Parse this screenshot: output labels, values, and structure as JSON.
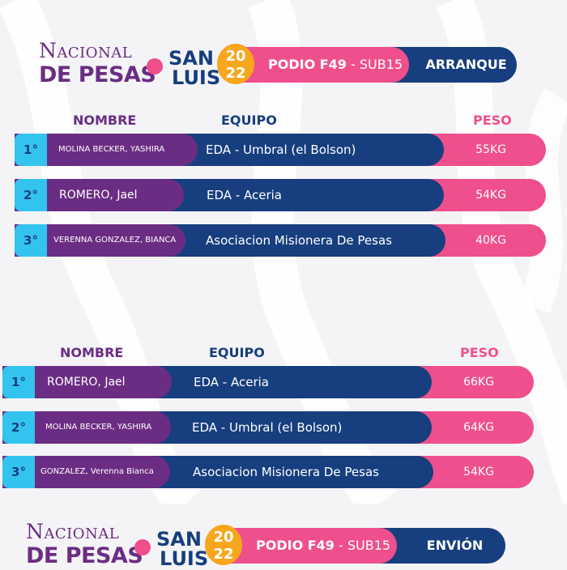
{
  "panels": [
    {
      "logo": {
        "line1_big1": "N",
        "line1_small1": "ACIONAL",
        "line2": "DE PESAS"
      },
      "city": {
        "line1": "SAN",
        "line2": "LUIS"
      },
      "year": {
        "top": "20",
        "bottom": "22"
      },
      "bar": {
        "podio": "PODIO F49",
        "sep": " - ",
        "category": "SUB15",
        "lift": "ARRANQUE"
      },
      "headers": {
        "nombre": "NOMBRE",
        "equipo": "EQUIPO",
        "peso": "PESO"
      },
      "rows": [
        {
          "rank": "1°",
          "name": "MOLINA BECKER, YASHIRA",
          "team": "EDA - Umbral (el Bolson)",
          "weight": "55KG"
        },
        {
          "rank": "2°",
          "name": "ROMERO, Jael",
          "team": "EDA - Aceria",
          "weight": "54KG"
        },
        {
          "rank": "3°",
          "name": "VERENNA GONZALEZ, BIANCA",
          "team": "Asociacion Misionera De Pesas",
          "weight": "40KG"
        }
      ]
    },
    {
      "logo": {
        "line1_big1": "N",
        "line1_small1": "ACIONAL",
        "line2": "DE PESAS"
      },
      "city": {
        "line1": "SAN",
        "line2": "LUIS"
      },
      "year": {
        "top": "20",
        "bottom": "22"
      },
      "bar": {
        "podio": "PODIO F49",
        "sep": " - ",
        "category": "SUB15",
        "lift": "ENVIÓN"
      },
      "headers": {
        "nombre": "NOMBRE",
        "equipo": "EQUIPO",
        "peso": "PESO"
      },
      "rows": [
        {
          "rank": "1°",
          "name": "ROMERO, Jael",
          "team": "EDA - Aceria",
          "weight": "66KG"
        },
        {
          "rank": "2°",
          "name": "MOLINA BECKER, YASHIRA",
          "team": "EDA - Umbral (el Bolson)",
          "weight": "64KG"
        },
        {
          "rank": "3°",
          "name": "GONZALEZ, Verenna Bianca",
          "team": "Asociacion Misionera De Pesas",
          "weight": "54KG"
        }
      ]
    }
  ],
  "colors": {
    "purple": "#6b2d83",
    "navy": "#173e7e",
    "pink": "#ef4f8c",
    "cyan": "#33c3ef",
    "orange": "#f8a61d"
  }
}
